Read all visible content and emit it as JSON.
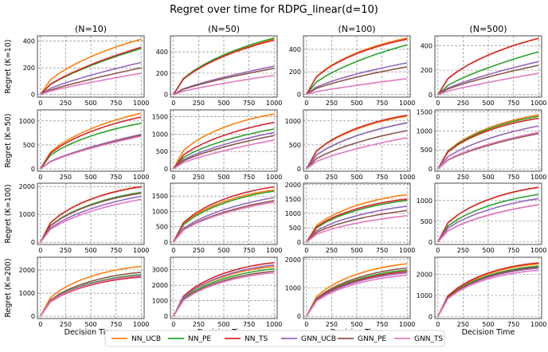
{
  "chart_data": {
    "type": "line",
    "title": "Regret over time for RDPG_linear(d=10)",
    "column_titles": [
      "(N=10)",
      "(N=50)",
      "(N=100)",
      "(N=500)"
    ],
    "row_labels": [
      "Regret (K=10)",
      "Regret (K=50)",
      "Regret (K=100)",
      "Regret (K=200)"
    ],
    "xlabel": "Decision Time",
    "xlim": [
      -30,
      1030
    ],
    "xticks": [
      0,
      250,
      500,
      750,
      1000
    ],
    "grid": true,
    "legend_position": "bottom-center",
    "series_names": [
      "NN_UCB",
      "NN_PE",
      "NN_TS",
      "GNN_UCB",
      "GNN_PE",
      "GNN_TS"
    ],
    "series_colors": [
      "#ff7f0e",
      "#2ca02c",
      "#d62728",
      "#9467bd",
      "#8c564b",
      "#e377c2"
    ],
    "x": [
      0,
      100,
      200,
      300,
      400,
      500,
      600,
      700,
      800,
      900,
      1000
    ],
    "panels": [
      {
        "row": 0,
        "col": 0,
        "ylim": [
          -20,
          440
        ],
        "yticks": [
          0,
          200,
          400
        ],
        "final": [
          415,
          345,
          355,
          240,
          200,
          160
        ],
        "shape": [
          0.5,
          0.35,
          0.35,
          0.28,
          0.2,
          0.18
        ]
      },
      {
        "row": 0,
        "col": 1,
        "ylim": [
          -25,
          550
        ],
        "yticks": [
          0,
          200,
          400
        ],
        "final": [
          520,
          530,
          510,
          265,
          245,
          180
        ],
        "shape": [
          0.55,
          0.55,
          0.55,
          0.3,
          0.3,
          0.22
        ]
      },
      {
        "row": 0,
        "col": 2,
        "ylim": [
          -25,
          520
        ],
        "yticks": [
          0,
          200,
          400
        ],
        "final": [
          500,
          440,
          490,
          280,
          245,
          140
        ],
        "shape": [
          0.65,
          0.45,
          0.65,
          0.4,
          0.35,
          0.2
        ]
      },
      {
        "row": 0,
        "col": 3,
        "ylim": [
          -20,
          480
        ],
        "yticks": [
          0,
          200,
          400
        ],
        "final": [
          460,
          350,
          460,
          270,
          240,
          175
        ],
        "shape": [
          0.55,
          0.35,
          0.55,
          0.3,
          0.28,
          0.2
        ]
      },
      {
        "row": 1,
        "col": 0,
        "ylim": [
          -50,
          1230
        ],
        "yticks": [
          0,
          500,
          1000
        ],
        "final": [
          1160,
          950,
          1080,
          720,
          700,
          680
        ],
        "shape": [
          0.6,
          0.6,
          0.6,
          0.35,
          0.35,
          0.35
        ]
      },
      {
        "row": 1,
        "col": 1,
        "ylim": [
          -70,
          1700
        ],
        "yticks": [
          0,
          500,
          1000,
          1500
        ],
        "final": [
          1580,
          1150,
          1340,
          1050,
          960,
          830
        ],
        "shape": [
          0.7,
          0.55,
          0.6,
          0.45,
          0.42,
          0.35
        ]
      },
      {
        "row": 1,
        "col": 2,
        "ylim": [
          -50,
          1230
        ],
        "yticks": [
          0,
          500,
          1000
        ],
        "final": [
          1100,
          960,
          1120,
          960,
          800,
          650
        ],
        "shape": [
          0.7,
          0.6,
          0.7,
          0.6,
          0.5,
          0.4
        ]
      },
      {
        "row": 1,
        "col": 3,
        "ylim": [
          -60,
          1550
        ],
        "yticks": [
          0,
          500,
          1000,
          1500
        ],
        "final": [
          1420,
          1380,
          1330,
          1130,
          930,
          960
        ],
        "shape": [
          0.7,
          0.7,
          0.7,
          0.55,
          0.45,
          0.47
        ]
      },
      {
        "row": 2,
        "col": 0,
        "ylim": [
          -80,
          2120
        ],
        "yticks": [
          0,
          1000,
          2000
        ],
        "final": [
          2000,
          1790,
          1990,
          1650,
          1760,
          1540
        ],
        "shape": [
          0.75,
          0.7,
          0.75,
          0.62,
          0.7,
          0.6
        ]
      },
      {
        "row": 2,
        "col": 1,
        "ylim": [
          -80,
          1920
        ],
        "yticks": [
          0,
          500,
          1000,
          1500
        ],
        "final": [
          1700,
          1660,
          1800,
          1450,
          1350,
          1300
        ],
        "shape": [
          0.75,
          0.72,
          0.75,
          0.62,
          0.6,
          0.6
        ]
      },
      {
        "row": 2,
        "col": 2,
        "ylim": [
          -80,
          2050
        ],
        "yticks": [
          0,
          500,
          1000,
          1500,
          2000
        ],
        "final": [
          1650,
          1450,
          1500,
          1250,
          1100,
          920
        ],
        "shape": [
          0.75,
          0.72,
          0.75,
          0.65,
          0.62,
          0.6
        ]
      },
      {
        "row": 2,
        "col": 3,
        "ylim": [
          -60,
          1420
        ],
        "yticks": [
          0,
          500,
          1000
        ],
        "final": [
          1320,
          1150,
          1320,
          1050,
          900,
          900
        ],
        "shape": [
          0.75,
          0.7,
          0.75,
          0.65,
          0.6,
          0.6
        ]
      },
      {
        "row": 3,
        "col": 0,
        "ylim": [
          -100,
          2550
        ],
        "yticks": [
          0,
          1000,
          2000
        ],
        "final": [
          2150,
          1800,
          1700,
          1750,
          1900,
          1750
        ],
        "shape": [
          0.82,
          0.8,
          0.8,
          0.8,
          0.8,
          0.8
        ]
      },
      {
        "row": 3,
        "col": 1,
        "ylim": [
          -150,
          3800
        ],
        "yticks": [
          0,
          1000,
          2000,
          3000
        ],
        "final": [
          3200,
          3050,
          3450,
          3300,
          2900,
          2800
        ],
        "shape": [
          0.82,
          0.8,
          0.82,
          0.8,
          0.8,
          0.8
        ]
      },
      {
        "row": 3,
        "col": 2,
        "ylim": [
          -80,
          2080
        ],
        "yticks": [
          0,
          1000,
          2000
        ],
        "final": [
          1850,
          1630,
          1580,
          1530,
          1700,
          1450
        ],
        "shape": [
          0.82,
          0.8,
          0.8,
          0.8,
          0.8,
          0.8
        ]
      },
      {
        "row": 3,
        "col": 3,
        "ylim": [
          -100,
          2820
        ],
        "yticks": [
          0,
          1000,
          2000
        ],
        "final": [
          2500,
          2400,
          2550,
          2300,
          2350,
          2200
        ],
        "shape": [
          0.85,
          0.85,
          0.85,
          0.85,
          0.85,
          0.85
        ]
      }
    ]
  }
}
